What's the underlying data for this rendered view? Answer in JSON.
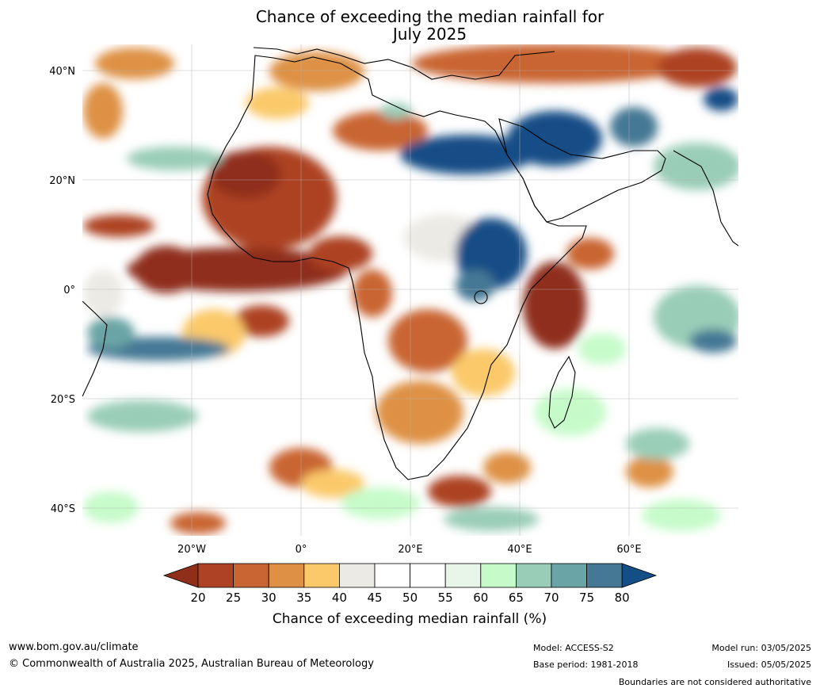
{
  "title": {
    "line1": "Chance of exceeding the median rainfall for",
    "line2": "July 2025"
  },
  "map": {
    "lat_labels": [
      "40°N",
      "20°N",
      "0°",
      "20°S",
      "40°S"
    ],
    "lon_labels": [
      "20°W",
      "0°",
      "20°E",
      "40°E",
      "60°E"
    ]
  },
  "colorbar": {
    "ticks": [
      "20",
      "25",
      "30",
      "35",
      "40",
      "45",
      "50",
      "55",
      "60",
      "65",
      "70",
      "75",
      "80"
    ],
    "colors": [
      "#8f2f1a",
      "#ad4324",
      "#c96533",
      "#de9145",
      "#fbc96a",
      "#eceae5",
      "#ffffff",
      "#ffffff",
      "#e8f6e9",
      "#c6fbc9",
      "#9acdb8",
      "#6ba4a6",
      "#457894",
      "#144e86"
    ],
    "label": "Chance of exceeding median rainfall (%)"
  },
  "footer": {
    "website": "www.bom.gov.au/climate",
    "copyright": "© Commonwealth of Australia 2025, Australian Bureau of Meteorology",
    "model": "Model: ACCESS-S2",
    "base_period": "Base period: 1981-2018",
    "model_run": "Model run: 03/05/2025",
    "issued": "Issued: 05/05/2025",
    "disclaimer": "Boundaries are not considered authoritative"
  }
}
